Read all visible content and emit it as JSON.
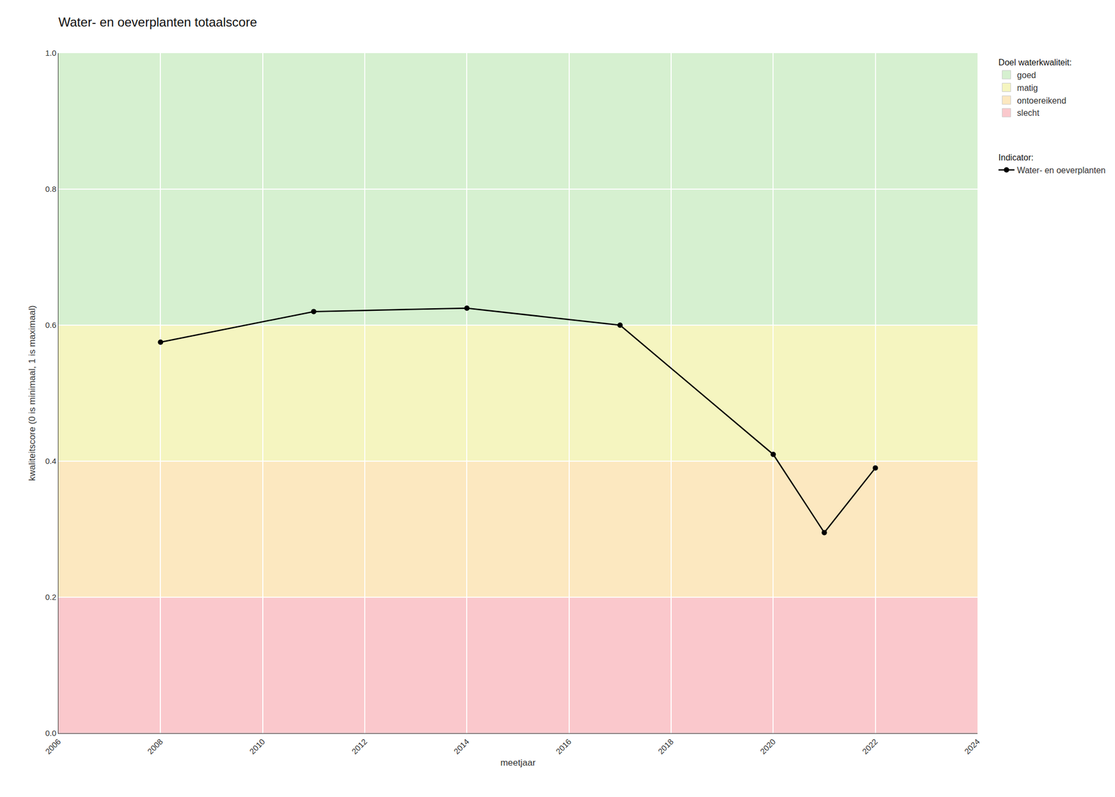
{
  "chart_data": {
    "type": "line",
    "title": "Water- en oeverplanten totaalscore",
    "xlabel": "meetjaar",
    "ylabel": "kwaliteitscore (0 is minimaal, 1 is maximaal)",
    "x": [
      2008,
      2011,
      2014,
      2017,
      2020,
      2021,
      2022
    ],
    "series": [
      {
        "name": "Water- en oeverplanten",
        "legend_title": "Indicator:",
        "color": "#000000",
        "marker": "circle",
        "values": [
          0.575,
          0.62,
          0.625,
          0.6,
          0.41,
          0.295,
          0.39
        ]
      }
    ],
    "zones": {
      "title": "Doel waterkwaliteit:",
      "items": [
        {
          "name": "goed",
          "color": "#d6f0d0",
          "ymin": 0.6,
          "ymax": 1.0
        },
        {
          "name": "matig",
          "color": "#f5f5c0",
          "ymin": 0.4,
          "ymax": 0.6
        },
        {
          "name": "ontoereikend",
          "color": "#fce8c0",
          "ymin": 0.2,
          "ymax": 0.4
        },
        {
          "name": "slecht",
          "color": "#fac8cc",
          "ymin": 0.0,
          "ymax": 0.2
        }
      ]
    },
    "xlim": [
      2006,
      2024
    ],
    "ylim": [
      0.0,
      1.0
    ],
    "xticks": [
      2006,
      2008,
      2010,
      2012,
      2014,
      2016,
      2018,
      2020,
      2022,
      2024
    ],
    "yticks": [
      {
        "value": 0.0,
        "label": "0.0"
      },
      0.2,
      0.4,
      0.6,
      0.8,
      {
        "value": 1.0,
        "label": "1.0"
      }
    ],
    "grid": true,
    "legend": "right"
  }
}
